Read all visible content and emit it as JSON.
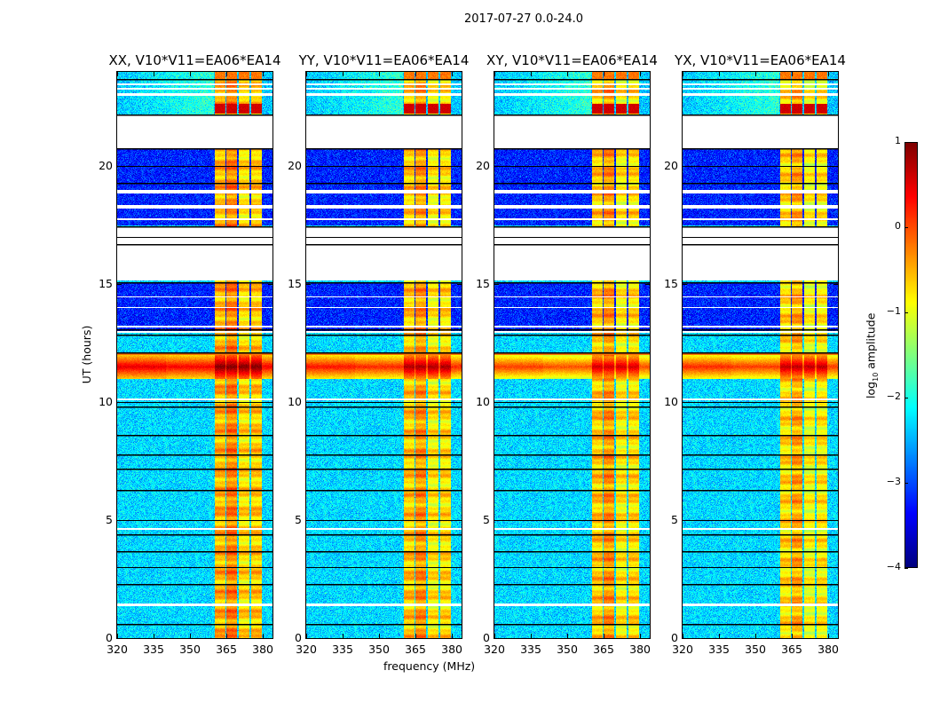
{
  "suptitle": "2017-07-27 0.0-24.0",
  "xlabel": "frequency (MHz)",
  "ylabel": "UT (hours)",
  "chart_data": {
    "type": "heatmap",
    "title": "2017-07-27 0.0-24.0",
    "xlabel": "frequency (MHz)",
    "ylabel": "UT (hours)",
    "xlim": [
      320,
      384
    ],
    "ylim": [
      0,
      24
    ],
    "xticks": [
      "320",
      "335",
      "350",
      "365",
      "380"
    ],
    "xtick_values": [
      320,
      335,
      350,
      365,
      380
    ],
    "yticks": [
      "0",
      "5",
      "10",
      "15",
      "20"
    ],
    "ytick_values": [
      0,
      5,
      10,
      15,
      20
    ],
    "panels": [
      {
        "title": "XX, V10*V11=EA06*EA14",
        "rfi_level": 0.3,
        "band_level": -0.6
      },
      {
        "title": "YY, V10*V11=EA06*EA14",
        "rfi_level": 0.1,
        "band_level": -0.7
      },
      {
        "title": "XY, V10*V11=EA06*EA14",
        "rfi_level": -0.1,
        "band_level": -0.7
      },
      {
        "title": "YX, V10*V11=EA06*EA14",
        "rfi_level": 0.0,
        "band_level": -0.8
      }
    ],
    "colorbar": {
      "label": "log10 amplitude",
      "label_main": "log",
      "label_sub": "10",
      "label_rest": " amplitude",
      "range": [
        -4,
        1
      ],
      "ticks": [
        "1",
        "0",
        "−1",
        "−2",
        "−3",
        "−4"
      ],
      "tick_values": [
        1,
        0,
        -1,
        -2,
        -3,
        -4
      ],
      "colormap": "jet"
    },
    "features": {
      "no_data_hours": [
        [
          20.75,
          22.2
        ],
        [
          15.15,
          17.45
        ],
        [
          18.85,
          19.0
        ],
        [
          18.2,
          18.35
        ],
        [
          17.7,
          17.8
        ],
        [
          23.0,
          23.1
        ],
        [
          23.25,
          23.32
        ],
        [
          23.42,
          23.5
        ],
        [
          13.15,
          13.25
        ],
        [
          14.45,
          14.5
        ],
        [
          14.0,
          14.05
        ],
        [
          1.35,
          1.45
        ],
        [
          12.95,
          13.0
        ],
        [
          10.1,
          10.15
        ],
        [
          4.6,
          4.65
        ]
      ],
      "scan_boundary_hours": [
        22.2,
        23.7,
        20.75,
        20.0,
        19.3,
        17.45,
        17.0,
        16.7,
        15.1,
        13.1,
        12.85,
        12.1,
        10.0,
        9.8,
        8.6,
        7.8,
        7.2,
        6.3,
        5.0,
        4.4,
        3.7,
        3.0,
        2.3,
        0.6
      ],
      "low_background_hours": [
        [
          13.0,
          15.1
        ],
        [
          17.5,
          20.75
        ]
      ],
      "background_level": -2.3,
      "low_background_level": -3.2,
      "emission_subbands_mhz": [
        [
          360.3,
          364.6
        ],
        [
          365.1,
          369.5
        ],
        [
          370.0,
          374.6
        ],
        [
          375.1,
          379.6
        ]
      ],
      "rfi_hours": [
        11.0,
        12.0
      ],
      "strong_emission_hours": [
        22.25,
        22.65
      ]
    }
  }
}
